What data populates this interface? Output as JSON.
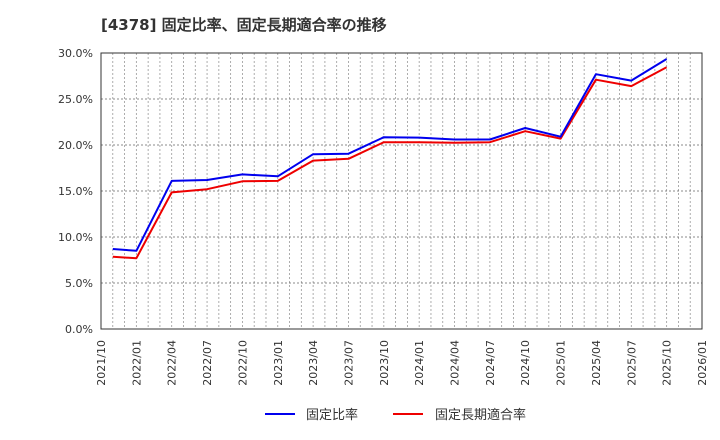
{
  "title": "[4378]  固定比率、固定長期適合率の推移",
  "colors": {
    "series1": "#0000ee",
    "series2": "#ee0000",
    "axis": "#333333",
    "grid": "#999999"
  },
  "chart_data": {
    "type": "line",
    "title": "[4378]  固定比率、固定長期適合率の推移",
    "xlabel": "",
    "ylabel": "",
    "ylim": [
      0,
      30
    ],
    "yticks": [
      "0.0%",
      "5.0%",
      "10.0%",
      "15.0%",
      "20.0%",
      "25.0%",
      "30.0%"
    ],
    "xtick_labels": [
      "2021/10",
      "2022/01",
      "2022/04",
      "2022/07",
      "2022/10",
      "2023/01",
      "2023/04",
      "2023/07",
      "2023/10",
      "2024/01",
      "2024/04",
      "2024/07",
      "2024/10",
      "2025/01",
      "2025/04",
      "2025/07",
      "2025/10",
      "2026/01"
    ],
    "x_range_months": [
      0,
      51
    ],
    "grid": true,
    "legend_position": "bottom",
    "x_month_offsets": [
      1,
      3,
      6,
      9,
      12,
      15,
      18,
      21,
      24,
      27,
      30,
      33,
      36,
      39,
      42,
      45,
      48
    ],
    "x": [
      "2021/11",
      "2022/01",
      "2022/04",
      "2022/07",
      "2022/10",
      "2023/01",
      "2023/04",
      "2023/07",
      "2023/10",
      "2024/01",
      "2024/04",
      "2024/07",
      "2024/10",
      "2025/01",
      "2025/04",
      "2025/07",
      "2025/10"
    ],
    "series": [
      {
        "name": "固定比率",
        "color": "#0000ee",
        "values": [
          8.7,
          8.5,
          16.1,
          16.2,
          16.8,
          16.6,
          19.0,
          19.05,
          20.85,
          20.8,
          20.6,
          20.6,
          21.85,
          20.9,
          27.7,
          27.0,
          29.35
        ]
      },
      {
        "name": "固定長期適合率",
        "color": "#ee0000",
        "values": [
          7.85,
          7.7,
          14.85,
          15.2,
          16.05,
          16.1,
          18.3,
          18.5,
          20.3,
          20.3,
          20.25,
          20.3,
          21.5,
          20.7,
          27.1,
          26.4,
          28.45
        ]
      }
    ]
  },
  "legend": {
    "items": [
      {
        "label": "固定比率",
        "color": "#0000ee"
      },
      {
        "label": "固定長期適合率",
        "color": "#ee0000"
      }
    ]
  }
}
